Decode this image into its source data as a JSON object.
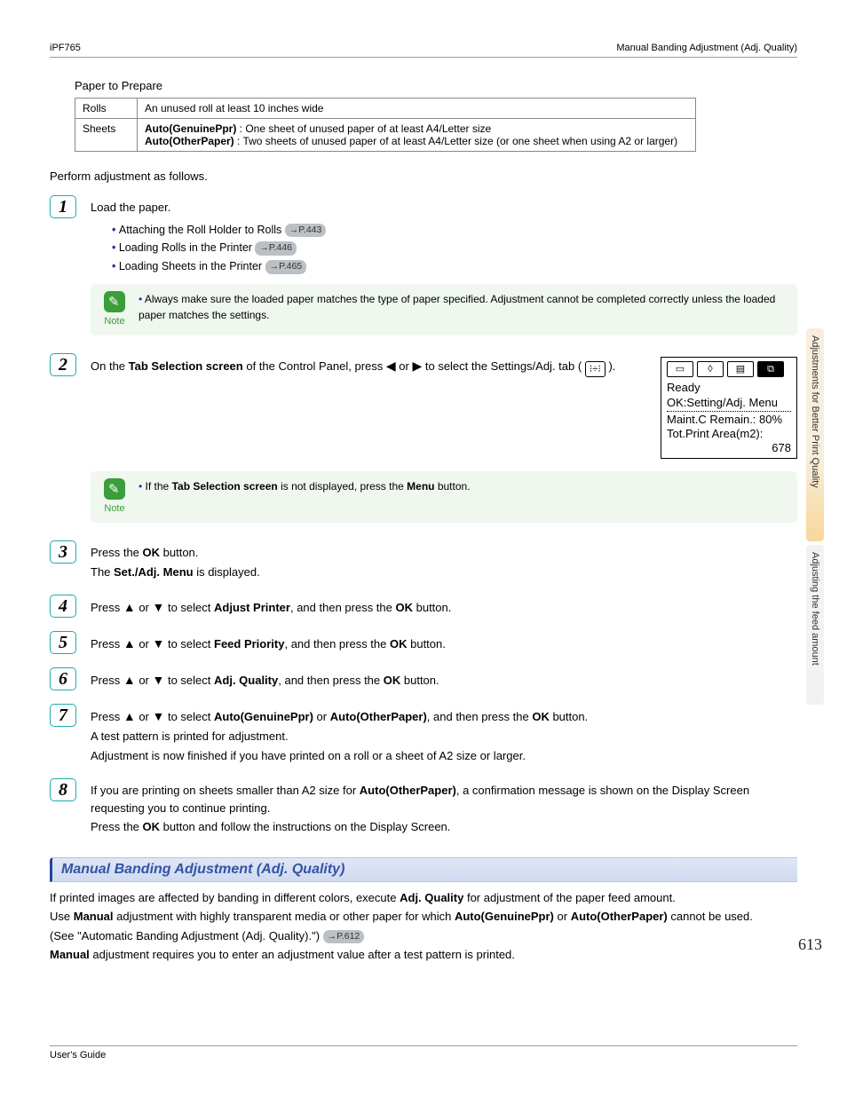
{
  "header": {
    "left": "iPF765",
    "right": "Manual Banding Adjustment (Adj. Quality)"
  },
  "paperTable": {
    "title": "Paper to Prepare",
    "rows": [
      {
        "label": "Rolls",
        "text": "An unused roll at least 10 inches wide"
      },
      {
        "label": "Sheets",
        "line1_bold": "Auto(GenuinePpr)",
        "line1_rest": " : One sheet of unused paper of at least A4/Letter size",
        "line2_bold": "Auto(OtherPaper)",
        "line2_rest": " : Two sheets of unused paper of at least A4/Letter size (or one sheet when using A2 or larger)"
      }
    ]
  },
  "intro": "Perform adjustment as follows.",
  "steps": {
    "s1": {
      "text": "Load the paper.",
      "bullets": [
        {
          "t": "Attaching the Roll Holder to Rolls ",
          "ref": "→P.443"
        },
        {
          "t": "Loading Rolls in the Printer ",
          "ref": "→P.446"
        },
        {
          "t": "Loading Sheets in the Printer ",
          "ref": "→P.465"
        }
      ],
      "note": "Always make sure the loaded paper matches the type of paper specified. Adjustment cannot be completed correctly unless the loaded paper matches the settings."
    },
    "s2": {
      "prefix": "On the ",
      "bold1": "Tab Selection screen",
      "mid": " of the Control Panel, press ",
      "mid2": " to select the Settings/Adj. tab ( ",
      "close": " ).",
      "note_a": "If the ",
      "note_bold1": "Tab Selection screen",
      "note_b": " is not displayed, press the ",
      "note_bold2": "Menu",
      "note_c": " button."
    },
    "lcd": {
      "tabs": [
        "▭",
        "◊",
        "▤",
        "⧉"
      ],
      "l1": "Ready",
      "l2": "OK:Setting/Adj. Menu",
      "l3": "Maint.C Remain.: 80%",
      "l4": "Tot.Print Area(m2):",
      "l5": "678"
    },
    "s3": {
      "a": "Press the ",
      "ok": "OK",
      "b": " button.",
      "c": "The ",
      "menu": "Set./Adj. Menu",
      "d": " is displayed."
    },
    "s4": {
      "a": "Press ",
      "b": " to select ",
      "opt": "Adjust Printer",
      "c": ", and then press the ",
      "ok": "OK",
      "d": " button."
    },
    "s5": {
      "a": "Press ",
      "b": " to select ",
      "opt": "Feed Priority",
      "c": ", and then press the ",
      "ok": "OK",
      "d": " button."
    },
    "s6": {
      "a": "Press ",
      "b": " to select ",
      "opt": "Adj. Quality",
      "c": ", and then press the ",
      "ok": "OK",
      "d": " button."
    },
    "s7": {
      "a": "Press ",
      "b": " to select ",
      "opt1": "Auto(GenuinePpr)",
      "or": " or ",
      "opt2": "Auto(OtherPaper)",
      "c": ", and then press the ",
      "ok": "OK",
      "d": " button.",
      "l2": "A test pattern is printed for adjustment.",
      "l3": "Adjustment is now finished if you have printed on a roll or a sheet of A2 size or larger."
    },
    "s8": {
      "a": "If you are printing on sheets smaller than A2 size for ",
      "opt": "Auto(OtherPaper)",
      "b": ", a confirmation message is shown on the Display Screen requesting you to continue printing.",
      "l2a": "Press the ",
      "ok": "OK",
      "l2b": " button and follow the instructions on the Display Screen."
    }
  },
  "section": {
    "title": "Manual Banding Adjustment (Adj. Quality)",
    "p1a": "If printed images are affected by banding in different colors, execute ",
    "p1b": "Adj. Quality",
    "p1c": " for adjustment of the paper feed amount.",
    "p2a": "Use ",
    "p2b": "Manual",
    "p2c": " adjustment with highly transparent media or other paper for which ",
    "p2d": "Auto(GenuinePpr)",
    "p2e": " or ",
    "p2f": "Auto(OtherPaper)",
    "p2g": " cannot be used.",
    "p3": " (See \"Automatic Banding Adjustment (Adj. Quality).\") ",
    "p3ref": "→P.612",
    "p4a": "Manual",
    "p4b": " adjustment requires you to enter an adjustment value after a test pattern is printed."
  },
  "sidebar": {
    "t1": "Adjustments for Better Print Quality",
    "t2": "Adjusting the feed amount"
  },
  "pageNumber": "613",
  "footer": "User's Guide",
  "noteLabel": "Note",
  "orWord": " or "
}
